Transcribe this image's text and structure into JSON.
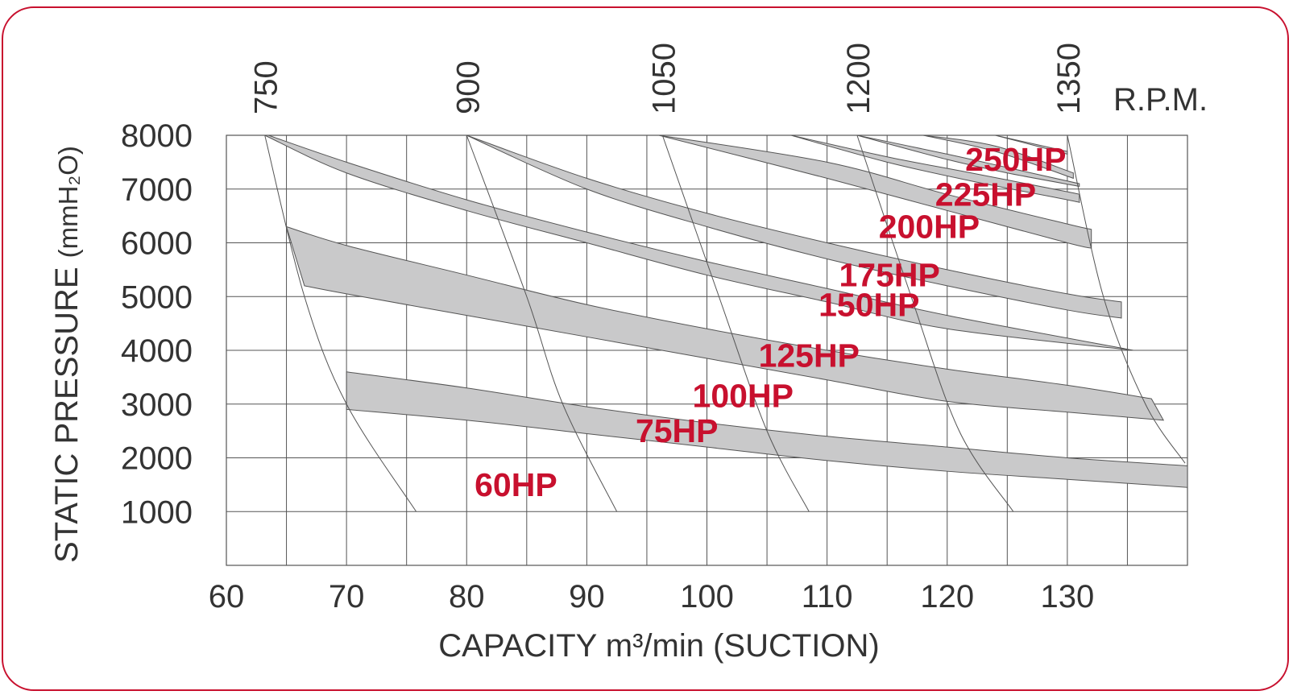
{
  "chart_data": {
    "type": "area",
    "xlabel": "CAPACITY m³/min (SUCTION)",
    "ylabel": "STATIC PRESSURE",
    "ylabel_unit": "(mmH₂O)",
    "rpm_label": "R.P.M.",
    "xlim": [
      60,
      140
    ],
    "ylim": [
      0,
      8000
    ],
    "x_ticks": [
      60,
      70,
      80,
      90,
      100,
      110,
      120,
      130
    ],
    "y_ticks": [
      1000,
      2000,
      3000,
      4000,
      5000,
      6000,
      7000,
      8000
    ],
    "grid": true,
    "rpm_curves": [
      {
        "label": "750",
        "points": [
          [
            63.2,
            8000
          ],
          [
            66.5,
            5000
          ],
          [
            70.0,
            3000
          ],
          [
            75.8,
            1000
          ]
        ]
      },
      {
        "label": "900",
        "points": [
          [
            80.0,
            8000
          ],
          [
            85.0,
            5000
          ],
          [
            88.0,
            3000
          ],
          [
            92.5,
            1000
          ]
        ]
      },
      {
        "label": "1050",
        "points": [
          [
            96.3,
            8000
          ],
          [
            101.0,
            5000
          ],
          [
            105.0,
            2500
          ],
          [
            108.5,
            1000
          ]
        ]
      },
      {
        "label": "1200",
        "points": [
          [
            112.5,
            8000
          ],
          [
            117.0,
            5000
          ],
          [
            121.0,
            2500
          ],
          [
            125.5,
            1000
          ]
        ]
      },
      {
        "label": "1350",
        "points": [
          [
            130.0,
            8000
          ],
          [
            133.0,
            5000
          ],
          [
            136.5,
            3000
          ],
          [
            139.8,
            1900
          ]
        ]
      }
    ],
    "series": [
      {
        "name": "60HP",
        "upper": [
          [
            70,
            3600
          ],
          [
            80,
            3300
          ],
          [
            90,
            2950
          ],
          [
            100,
            2650
          ],
          [
            110,
            2400
          ],
          [
            120,
            2200
          ],
          [
            130,
            2000
          ],
          [
            140,
            1850
          ]
        ],
        "lower": [
          [
            70,
            2900
          ],
          [
            80,
            2700
          ],
          [
            90,
            2450
          ],
          [
            100,
            2200
          ],
          [
            110,
            1950
          ],
          [
            120,
            1750
          ],
          [
            130,
            1600
          ],
          [
            140,
            1450
          ]
        ]
      },
      {
        "name": "75HP",
        "upper": [
          [
            65,
            6300
          ],
          [
            70,
            5950
          ],
          [
            80,
            5400
          ],
          [
            90,
            4850
          ],
          [
            100,
            4400
          ],
          [
            110,
            4000
          ],
          [
            120,
            3650
          ],
          [
            130,
            3350
          ],
          [
            137,
            3100
          ]
        ],
        "lower": [
          [
            66.5,
            5200
          ],
          [
            70,
            5050
          ],
          [
            80,
            4650
          ],
          [
            90,
            4250
          ],
          [
            100,
            3850
          ],
          [
            110,
            3450
          ],
          [
            120,
            3050
          ],
          [
            130,
            2850
          ],
          [
            138,
            2700
          ]
        ]
      },
      {
        "name": "100HP",
        "upper": [
          [
            63.5,
            8000
          ],
          [
            70,
            7500
          ],
          [
            80,
            6800
          ],
          [
            90,
            6200
          ],
          [
            100,
            5650
          ],
          [
            110,
            5150
          ],
          [
            120,
            4650
          ],
          [
            135.5,
            4000
          ]
        ],
        "lower": [
          [
            63.2,
            8000
          ],
          [
            70,
            7300
          ],
          [
            80,
            6600
          ],
          [
            90,
            6000
          ],
          [
            100,
            5400
          ],
          [
            110,
            4900
          ],
          [
            120,
            4400
          ],
          [
            135.5,
            4000
          ]
        ]
      },
      {
        "name": "125HP",
        "upper": [
          [
            80,
            8000
          ],
          [
            90,
            7200
          ],
          [
            100,
            6550
          ],
          [
            110,
            6000
          ],
          [
            120,
            5500
          ],
          [
            130,
            5050
          ],
          [
            134.5,
            4900
          ]
        ],
        "lower": [
          [
            80,
            8000
          ],
          [
            90,
            7000
          ],
          [
            100,
            6300
          ],
          [
            110,
            5700
          ],
          [
            120,
            5200
          ],
          [
            130,
            4750
          ],
          [
            134.5,
            4600
          ]
        ]
      },
      {
        "name": "150HP",
        "upper": [
          [
            96,
            8000
          ],
          [
            110,
            7500
          ],
          [
            120,
            6900
          ],
          [
            130,
            6350
          ],
          [
            132,
            6250
          ]
        ],
        "lower": [
          [
            96,
            8000
          ],
          [
            110,
            7200
          ],
          [
            120,
            6600
          ],
          [
            130,
            6000
          ],
          [
            132,
            5900
          ]
        ]
      },
      {
        "name": "175HP",
        "upper": [
          [
            107,
            8000
          ],
          [
            115,
            7600
          ],
          [
            122,
            7300
          ],
          [
            130,
            6950
          ],
          [
            131,
            6900
          ]
        ],
        "lower": [
          [
            107,
            8000
          ],
          [
            115,
            7500
          ],
          [
            122,
            7150
          ],
          [
            130,
            6800
          ],
          [
            131,
            6750
          ]
        ]
      },
      {
        "name": "200HP",
        "upper": [
          [
            112.5,
            8000
          ],
          [
            120,
            7650
          ],
          [
            125,
            7400
          ],
          [
            131,
            7100
          ]
        ],
        "lower": [
          [
            112.5,
            8000
          ],
          [
            120,
            7550
          ],
          [
            125,
            7300
          ],
          [
            131,
            7050
          ]
        ]
      },
      {
        "name": "225HP",
        "upper": [
          [
            118,
            8000
          ],
          [
            124,
            7800
          ],
          [
            130.5,
            7300
          ]
        ],
        "lower": [
          [
            118,
            8000
          ],
          [
            124,
            7700
          ],
          [
            130.5,
            7200
          ]
        ]
      },
      {
        "name": "250HP",
        "upper": [
          [
            124,
            8000
          ],
          [
            130,
            7700
          ]
        ],
        "lower": [
          [
            124,
            8000
          ],
          [
            130,
            7650
          ]
        ]
      }
    ],
    "hp_labels": [
      {
        "text": "250HP",
        "x": 125.7,
        "y": 7550
      },
      {
        "text": "225HP",
        "x": 123.2,
        "y": 6900
      },
      {
        "text": "200HP",
        "x": 118.5,
        "y": 6300
      },
      {
        "text": "175HP",
        "x": 115.2,
        "y": 5400
      },
      {
        "text": "150HP",
        "x": 113.5,
        "y": 4850
      },
      {
        "text": "125HP",
        "x": 108.5,
        "y": 3900
      },
      {
        "text": "100HP",
        "x": 103.0,
        "y": 3150
      },
      {
        "text": "75HP",
        "x": 97.5,
        "y": 2500
      },
      {
        "text": "60HP",
        "x": 84.1,
        "y": 1500
      }
    ]
  },
  "colors": {
    "band_fill": "#c9c9ca",
    "band_stroke": "#555555",
    "grid": "#555555",
    "hp_label": "#c8102e",
    "text": "#333333",
    "frame": "#c8102e"
  }
}
